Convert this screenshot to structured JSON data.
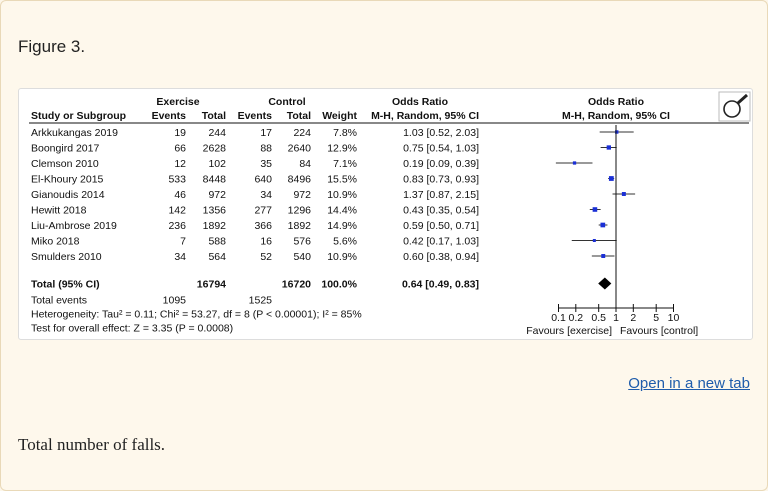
{
  "figure_label": "Figure 3.",
  "open_link": "Open in a new tab",
  "caption": "Total number of falls.",
  "zoom_icon": "magnifier-icon",
  "colors": {
    "point": "#1a2fd6",
    "diamond": "#000000",
    "link": "#1f5cab"
  },
  "chart_data": {
    "type": "forest",
    "group_headers": {
      "exercise": "Exercise",
      "control": "Control",
      "or_left": "Odds Ratio",
      "or_right": "Odds Ratio"
    },
    "columns": [
      "Study or Subgroup",
      "Events",
      "Total",
      "Events",
      "Total",
      "Weight",
      "M-H, Random, 95% CI",
      "M-H, Random, 95% CI"
    ],
    "studies": [
      {
        "name": "Arkkukangas 2019",
        "ex_events": "19",
        "ex_total": "244",
        "ct_events": "17",
        "ct_total": "224",
        "weight": "7.8%",
        "ci_text": "1.03 [0.52, 2.03]",
        "or": 1.03,
        "lo": 0.52,
        "hi": 2.03,
        "w": 7.8
      },
      {
        "name": "Boongird 2017",
        "ex_events": "66",
        "ex_total": "2628",
        "ct_events": "88",
        "ct_total": "2640",
        "weight": "12.9%",
        "ci_text": "0.75 [0.54, 1.03]",
        "or": 0.75,
        "lo": 0.54,
        "hi": 1.03,
        "w": 12.9
      },
      {
        "name": "Clemson 2010",
        "ex_events": "12",
        "ex_total": "102",
        "ct_events": "35",
        "ct_total": "84",
        "weight": "7.1%",
        "ci_text": "0.19 [0.09, 0.39]",
        "or": 0.19,
        "lo": 0.09,
        "hi": 0.39,
        "w": 7.1
      },
      {
        "name": "El-Khoury 2015",
        "ex_events": "533",
        "ex_total": "8448",
        "ct_events": "640",
        "ct_total": "8496",
        "weight": "15.5%",
        "ci_text": "0.83 [0.73, 0.93]",
        "or": 0.83,
        "lo": 0.73,
        "hi": 0.93,
        "w": 15.5
      },
      {
        "name": "Gianoudis 2014",
        "ex_events": "46",
        "ex_total": "972",
        "ct_events": "34",
        "ct_total": "972",
        "weight": "10.9%",
        "ci_text": "1.37 [0.87, 2.15]",
        "or": 1.37,
        "lo": 0.87,
        "hi": 2.15,
        "w": 10.9
      },
      {
        "name": "Hewitt 2018",
        "ex_events": "142",
        "ex_total": "1356",
        "ct_events": "277",
        "ct_total": "1296",
        "weight": "14.4%",
        "ci_text": "0.43 [0.35, 0.54]",
        "or": 0.43,
        "lo": 0.35,
        "hi": 0.54,
        "w": 14.4
      },
      {
        "name": "Liu-Ambrose 2019",
        "ex_events": "236",
        "ex_total": "1892",
        "ct_events": "366",
        "ct_total": "1892",
        "weight": "14.9%",
        "ci_text": "0.59 [0.50, 0.71]",
        "or": 0.59,
        "lo": 0.5,
        "hi": 0.71,
        "w": 14.9
      },
      {
        "name": "Miko 2018",
        "ex_events": "7",
        "ex_total": "588",
        "ct_events": "16",
        "ct_total": "576",
        "weight": "5.6%",
        "ci_text": "0.42 [0.17, 1.03]",
        "or": 0.42,
        "lo": 0.17,
        "hi": 1.03,
        "w": 5.6
      },
      {
        "name": "Smulders 2010",
        "ex_events": "34",
        "ex_total": "564",
        "ct_events": "52",
        "ct_total": "540",
        "weight": "10.9%",
        "ci_text": "0.60 [0.38, 0.94]",
        "or": 0.6,
        "lo": 0.38,
        "hi": 0.94,
        "w": 10.9
      }
    ],
    "total": {
      "name": "Total (95% CI)",
      "ex_total": "16794",
      "ct_total": "16720",
      "weight": "100.0%",
      "ci_text": "0.64 [0.49, 0.83]",
      "or": 0.64,
      "lo": 0.49,
      "hi": 0.83
    },
    "total_events": {
      "name": "Total events",
      "ex_events": "1095",
      "ct_events": "1525"
    },
    "heterogeneity": "Heterogeneity: Tau² = 0.11; Chi² = 53.27, df = 8 (P < 0.00001); I² = 85%",
    "overall_effect": "Test for overall effect: Z = 3.35 (P = 0.0008)",
    "x_scale": "log",
    "xlim": [
      0.1,
      10
    ],
    "ticks": [
      0.1,
      0.2,
      0.5,
      1,
      2,
      5,
      10
    ],
    "tick_labels": [
      "0.1",
      "0.2",
      "0.5",
      "1",
      "2",
      "5",
      "10"
    ],
    "favours_left": "Favours [exercise]",
    "favours_right": "Favours [control]"
  }
}
